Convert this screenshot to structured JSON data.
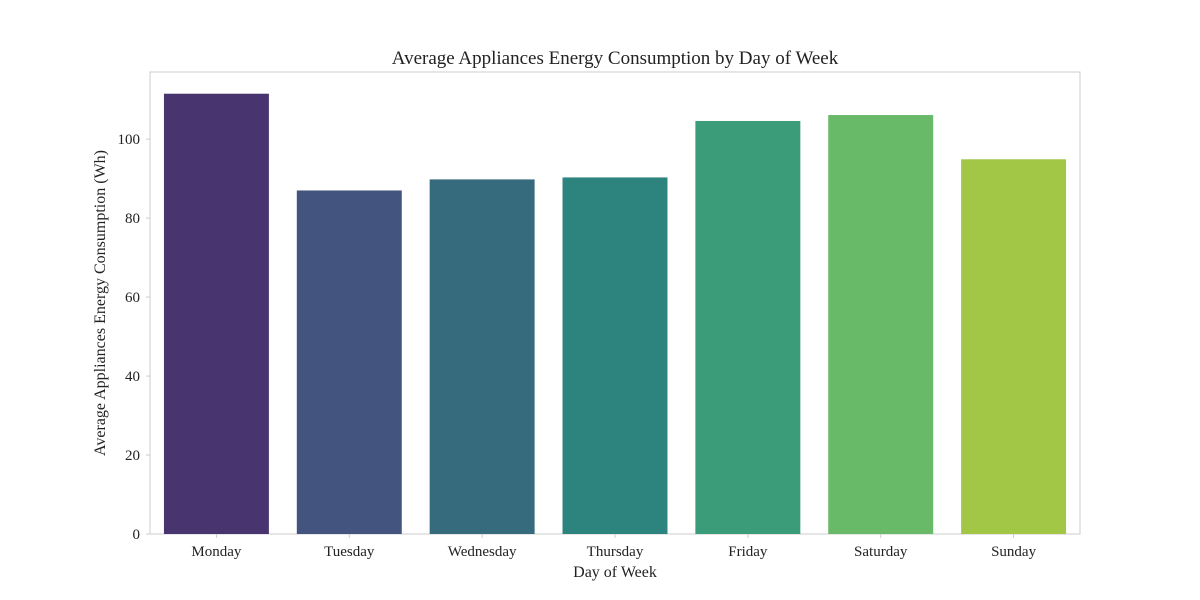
{
  "chart_data": {
    "type": "bar",
    "title": "Average Appliances Energy Consumption by Day of Week",
    "xlabel": "Day of Week",
    "ylabel": "Average Appliances Energy Consumption (Wh)",
    "categories": [
      "Monday",
      "Tuesday",
      "Wednesday",
      "Thursday",
      "Friday",
      "Saturday",
      "Sunday"
    ],
    "values": [
      111.5,
      87.0,
      89.8,
      90.3,
      104.6,
      106.1,
      94.9
    ],
    "colors": [
      "#48356f",
      "#43557f",
      "#366b7e",
      "#2d837e",
      "#3a9c78",
      "#68ba69",
      "#a2c747"
    ],
    "yticks": [
      0,
      20,
      40,
      60,
      80,
      100
    ],
    "ylim": [
      0,
      117
    ],
    "grid": false,
    "legend": "none"
  }
}
